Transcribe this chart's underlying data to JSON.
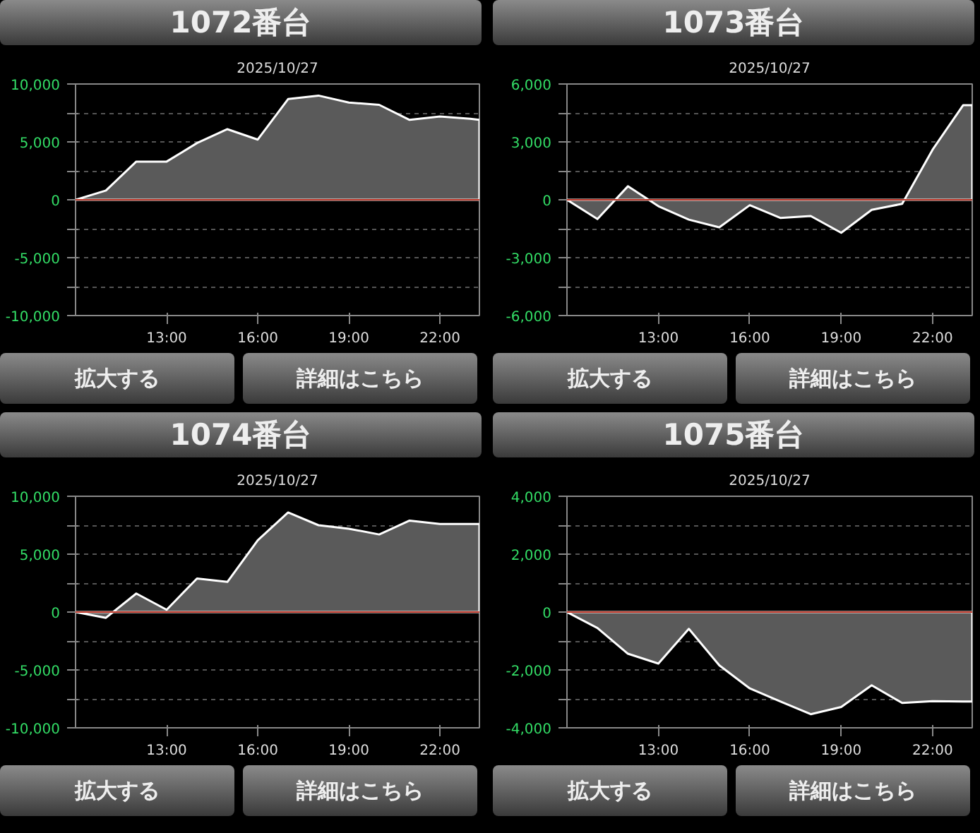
{
  "chart_data": [
    {
      "type": "area",
      "title": "1072番台",
      "subtitle": "2025/10/27",
      "annotations": [
        "拡大する",
        "詳細はこちら"
      ],
      "x": [
        10,
        11,
        12,
        13,
        14,
        15,
        16,
        17,
        18,
        19,
        20,
        21,
        22,
        23,
        23.3
      ],
      "series": [
        {
          "color": "#5a5a5a",
          "values": [
            0,
            800,
            3300,
            3300,
            4900,
            6100,
            5200,
            8700,
            9000,
            8400,
            8200,
            6900,
            7200,
            7000,
            6900
          ]
        }
      ],
      "xlim": [
        10,
        23.3
      ],
      "xticks": [
        {
          "value": 13,
          "label": "13:00"
        },
        {
          "value": 16,
          "label": "16:00"
        },
        {
          "value": 19,
          "label": "19:00"
        },
        {
          "value": 22,
          "label": "22:00"
        }
      ],
      "ylim": [
        -10000,
        10000
      ],
      "yticks": [
        {
          "value": -10000,
          "label": "-10,000"
        },
        {
          "value": -7500,
          "label": null
        },
        {
          "value": -5000,
          "label": "-5,000"
        },
        {
          "value": -2500,
          "label": null
        },
        0,
        {
          "value": 2500,
          "label": null
        },
        {
          "value": 5000,
          "label": "5,000"
        },
        {
          "value": 7500,
          "label": null
        },
        {
          "value": 10000,
          "label": "10,000"
        }
      ],
      "ref_lines": [
        {
          "axis": "y",
          "value": 0,
          "color": "#c0392b"
        }
      ],
      "grid": "y"
    },
    {
      "type": "area",
      "title": "1073番台",
      "subtitle": "2025/10/27",
      "annotations": [
        "拡大する",
        "詳細はこちら"
      ],
      "x": [
        10,
        11,
        12,
        13,
        14,
        15,
        16,
        17,
        18,
        19,
        20,
        21,
        22,
        23,
        23.3
      ],
      "series": [
        {
          "color": "#5a5a5a",
          "values": [
            0,
            -1000,
            700,
            -330,
            -1030,
            -1430,
            -280,
            -940,
            -840,
            -1710,
            -520,
            -210,
            2600,
            4900,
            4900
          ]
        }
      ],
      "xlim": [
        10,
        23.3
      ],
      "xticks": [
        {
          "value": 13,
          "label": "13:00"
        },
        {
          "value": 16,
          "label": "16:00"
        },
        {
          "value": 19,
          "label": "19:00"
        },
        {
          "value": 22,
          "label": "22:00"
        }
      ],
      "ylim": [
        -6000,
        6000
      ],
      "yticks": [
        {
          "value": -6000,
          "label": "-6,000"
        },
        {
          "value": -4500,
          "label": null
        },
        {
          "value": -3000,
          "label": "-3,000"
        },
        {
          "value": -1500,
          "label": null
        },
        0,
        {
          "value": 1500,
          "label": null
        },
        {
          "value": 3000,
          "label": "3,000"
        },
        {
          "value": 4500,
          "label": null
        },
        {
          "value": 6000,
          "label": "6,000"
        }
      ],
      "ref_lines": [
        {
          "axis": "y",
          "value": 0,
          "color": "#c0392b"
        }
      ],
      "grid": "y"
    },
    {
      "type": "area",
      "title": "1074番台",
      "subtitle": "2025/10/27",
      "annotations": [
        "拡大する",
        "詳細はこちら"
      ],
      "x": [
        10,
        11,
        12,
        13,
        14,
        15,
        16,
        17,
        18,
        19,
        20,
        21,
        22,
        23,
        23.3
      ],
      "series": [
        {
          "color": "#5a5a5a",
          "values": [
            0,
            -500,
            1600,
            200,
            2900,
            2600,
            6200,
            8600,
            7500,
            7200,
            6700,
            7900,
            7600,
            7600,
            7600
          ]
        }
      ],
      "xlim": [
        10,
        23.3
      ],
      "xticks": [
        {
          "value": 13,
          "label": "13:00"
        },
        {
          "value": 16,
          "label": "16:00"
        },
        {
          "value": 19,
          "label": "19:00"
        },
        {
          "value": 22,
          "label": "22:00"
        }
      ],
      "ylim": [
        -10000,
        10000
      ],
      "yticks": [
        {
          "value": -10000,
          "label": "-10,000"
        },
        {
          "value": -7500,
          "label": null
        },
        {
          "value": -5000,
          "label": "-5,000"
        },
        {
          "value": -2500,
          "label": null
        },
        0,
        {
          "value": 2500,
          "label": null
        },
        {
          "value": 5000,
          "label": "5,000"
        },
        {
          "value": 7500,
          "label": null
        },
        {
          "value": 10000,
          "label": "10,000"
        }
      ],
      "ref_lines": [
        {
          "axis": "y",
          "value": 0,
          "color": "#c0392b"
        }
      ],
      "grid": "y"
    },
    {
      "type": "area",
      "title": "1075番台",
      "subtitle": "2025/10/27",
      "annotations": [
        "拡大する",
        "詳細はこちら"
      ],
      "x": [
        10,
        11,
        12,
        13,
        14,
        15,
        16,
        17,
        18,
        19,
        20,
        21,
        22,
        23,
        23.3
      ],
      "series": [
        {
          "color": "#5a5a5a",
          "values": [
            0,
            -550,
            -1440,
            -1780,
            -580,
            -1840,
            -2640,
            -3090,
            -3530,
            -3280,
            -2530,
            -3140,
            -3080,
            -3090,
            -3090
          ]
        }
      ],
      "xlim": [
        10,
        23.3
      ],
      "xticks": [
        {
          "value": 13,
          "label": "13:00"
        },
        {
          "value": 16,
          "label": "16:00"
        },
        {
          "value": 19,
          "label": "19:00"
        },
        {
          "value": 22,
          "label": "22:00"
        }
      ],
      "ylim": [
        -4000,
        4000
      ],
      "yticks": [
        {
          "value": -4000,
          "label": "-4,000"
        },
        {
          "value": -3000,
          "label": null
        },
        {
          "value": -2000,
          "label": "-2,000"
        },
        {
          "value": -1000,
          "label": null
        },
        0,
        {
          "value": 1000,
          "label": null
        },
        {
          "value": 2000,
          "label": "2,000"
        },
        {
          "value": 3000,
          "label": null
        },
        {
          "value": 4000,
          "label": "4,000"
        }
      ],
      "ref_lines": [
        {
          "axis": "y",
          "value": 0,
          "color": "#c0392b"
        }
      ],
      "grid": "y"
    }
  ]
}
